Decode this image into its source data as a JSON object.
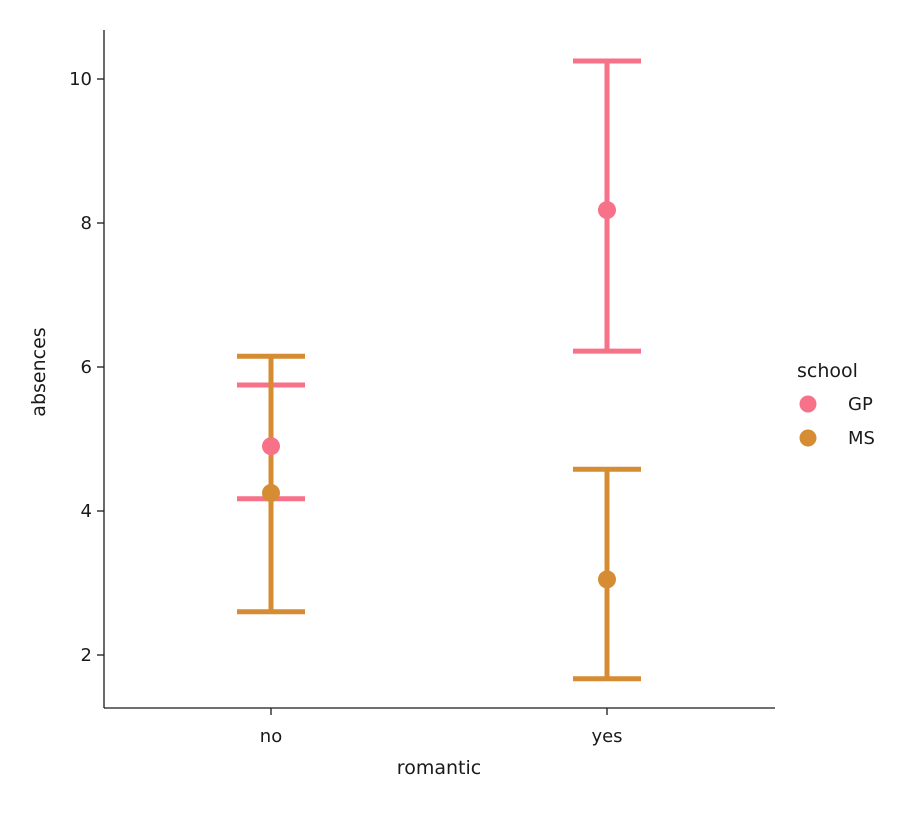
{
  "chart_data": {
    "type": "scatter",
    "subtype": "point-plot-with-error-bars",
    "title": "",
    "xlabel": "romantic",
    "ylabel": "absences",
    "categories": [
      "no",
      "yes"
    ],
    "ylim": [
      1.3,
      10.7
    ],
    "yticks": [
      2,
      4,
      6,
      8,
      10
    ],
    "grid": false,
    "legend": {
      "title": "school",
      "placement": "right"
    },
    "series": [
      {
        "name": "GP",
        "color": "#f77189",
        "values": [
          4.9,
          8.18
        ],
        "ci_low": [
          4.17,
          6.22
        ],
        "ci_high": [
          5.75,
          10.25
        ]
      },
      {
        "name": "MS",
        "color": "#d58c32",
        "values": [
          4.25,
          3.05
        ],
        "ci_low": [
          2.6,
          1.67
        ],
        "ci_high": [
          6.15,
          4.58
        ]
      }
    ]
  }
}
